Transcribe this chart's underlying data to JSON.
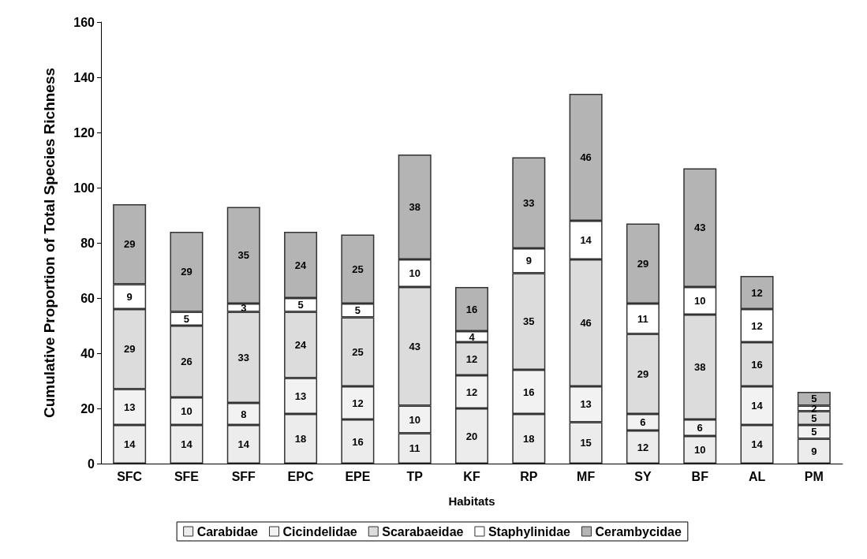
{
  "chart_data": {
    "type": "bar",
    "stacked": true,
    "xlabel": "Habitats",
    "ylabel": "Cumulative Proportion of Total Species Richness",
    "categories": [
      "SFC",
      "SFE",
      "SFF",
      "EPC",
      "EPE",
      "TP",
      "KF",
      "RP",
      "MF",
      "SY",
      "BF",
      "AL",
      "PM"
    ],
    "series": [
      {
        "name": "Carabidae",
        "color": "#ececec",
        "values": [
          14,
          14,
          14,
          18,
          16,
          11,
          20,
          18,
          15,
          12,
          10,
          14,
          9
        ]
      },
      {
        "name": "Cicindelidae",
        "color": "#f2f2f2",
        "values": [
          13,
          10,
          8,
          13,
          12,
          10,
          12,
          16,
          13,
          6,
          6,
          14,
          5
        ]
      },
      {
        "name": "Scarabaeidae",
        "color": "#dcdcdc",
        "values": [
          29,
          26,
          33,
          24,
          25,
          43,
          12,
          35,
          46,
          29,
          38,
          16,
          5
        ]
      },
      {
        "name": "Staphylinidae",
        "color": "#ffffff",
        "values": [
          9,
          5,
          3,
          5,
          5,
          10,
          4,
          9,
          14,
          11,
          10,
          12,
          2
        ]
      },
      {
        "name": "Cerambycidae",
        "color": "#b4b4b4",
        "values": [
          29,
          29,
          35,
          24,
          25,
          38,
          16,
          33,
          46,
          29,
          43,
          12,
          5
        ]
      }
    ],
    "ylim": [
      0,
      160
    ],
    "yticks": [
      0,
      20,
      40,
      60,
      80,
      100,
      120,
      140,
      160
    ],
    "grid": false,
    "legend": "bottom",
    "data_labels": true
  }
}
